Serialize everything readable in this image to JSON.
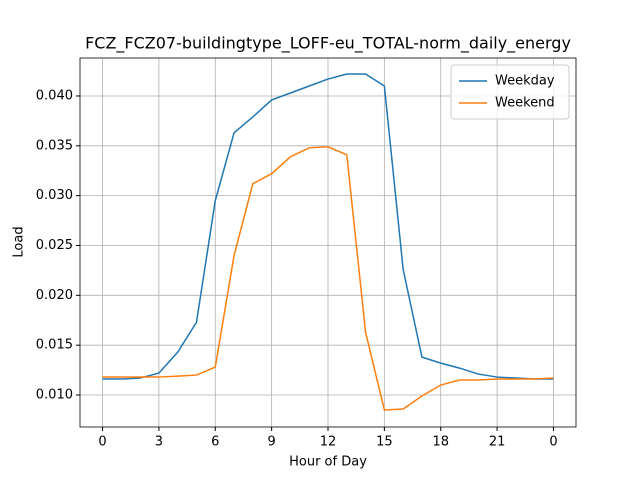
{
  "chart_data": {
    "type": "line",
    "title": "FCZ_FCZ07-buildingtype_LOFF-eu_TOTAL-norm_daily_energy",
    "x_label": "Hour of Day",
    "y_label": "Load",
    "x": [
      0,
      1,
      2,
      3,
      4,
      5,
      6,
      7,
      8,
      9,
      10,
      11,
      12,
      13,
      14,
      15,
      16,
      17,
      18,
      19,
      20,
      21,
      22,
      23,
      24
    ],
    "series": [
      {
        "name": "Weekday",
        "color": "#1f77b4",
        "values": [
          0.0116,
          0.0116,
          0.0117,
          0.0122,
          0.0143,
          0.0173,
          0.0295,
          0.0363,
          0.0379,
          0.0396,
          0.0403,
          0.041,
          0.0417,
          0.0422,
          0.0422,
          0.041,
          0.0226,
          0.0138,
          0.0132,
          0.0127,
          0.0121,
          0.0118,
          0.0117,
          0.0116,
          0.0116
        ]
      },
      {
        "name": "Weekend",
        "color": "#ff7f0e",
        "values": [
          0.0118,
          0.0118,
          0.0118,
          0.0118,
          0.0119,
          0.012,
          0.0128,
          0.024,
          0.0312,
          0.0322,
          0.0339,
          0.0348,
          0.0349,
          0.0341,
          0.0163,
          0.0085,
          0.0086,
          0.0099,
          0.011,
          0.0115,
          0.0115,
          0.0116,
          0.0116,
          0.0116,
          0.0117
        ]
      }
    ],
    "xlim": [
      -1.2,
      25.2
    ],
    "xticks": [
      0,
      3,
      6,
      9,
      12,
      15,
      18,
      21,
      {
        "value": 24,
        "label": "0"
      }
    ],
    "ylim": [
      0.00679,
      0.04381
    ],
    "yticks": [
      {
        "value": 0.01,
        "label": "0.010"
      },
      {
        "value": 0.015,
        "label": "0.015"
      },
      {
        "value": 0.02,
        "label": "0.020"
      },
      {
        "value": 0.025,
        "label": "0.025"
      },
      {
        "value": 0.03,
        "label": "0.030"
      },
      {
        "value": 0.035,
        "label": "0.035"
      },
      {
        "value": 0.04,
        "label": "0.040"
      }
    ],
    "grid": true,
    "legend": "upper right"
  }
}
